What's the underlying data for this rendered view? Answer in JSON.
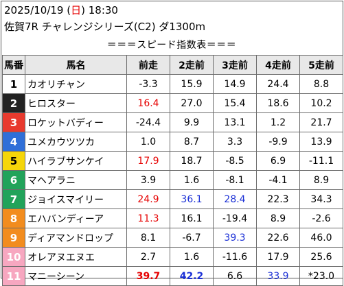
{
  "header": {
    "date": "2025/10/19",
    "weekday_open": " (",
    "weekday": "日",
    "weekday_close": ")",
    "time": " 18:30",
    "race": "佐賀7R チャレンジシリーズ(C2) ダ1300m"
  },
  "section_title": "＝＝＝スピード指数表＝＝＝",
  "columns": [
    "馬番",
    "馬名",
    "前走",
    "2走前",
    "3走前",
    "4走前",
    "5走前"
  ],
  "gate_colors": [
    "#ffffff",
    "#222222",
    "#e83a2e",
    "#2f6fd8",
    "#f5d60a",
    "#21a35a",
    "#f28c1e",
    "#f7a7c0"
  ],
  "rows": [
    {
      "no": "1",
      "name": "カオリチャン",
      "frame": 1,
      "v": [
        "-3.3",
        "15.9",
        "14.9",
        "24.4",
        "8.8"
      ],
      "c": [
        "",
        "",
        "",
        "",
        ""
      ]
    },
    {
      "no": "2",
      "name": "ヒロスター",
      "frame": 2,
      "v": [
        "16.4",
        "27.0",
        "15.4",
        "18.6",
        "10.2"
      ],
      "c": [
        "red",
        "",
        "",
        "",
        ""
      ]
    },
    {
      "no": "3",
      "name": "ロケットバディー",
      "frame": 3,
      "v": [
        "-24.4",
        "9.9",
        "13.1",
        "1.2",
        "21.7"
      ],
      "c": [
        "",
        "",
        "",
        "",
        ""
      ]
    },
    {
      "no": "4",
      "name": "ユメカウツツカ",
      "frame": 4,
      "v": [
        "1.0",
        "8.7",
        "3.3",
        "-9.9",
        "13.9"
      ],
      "c": [
        "",
        "",
        "",
        "",
        ""
      ]
    },
    {
      "no": "5",
      "name": "ハイラブサンケイ",
      "frame": 5,
      "v": [
        "17.9",
        "18.7",
        "-8.5",
        "6.9",
        "-11.1"
      ],
      "c": [
        "red",
        "",
        "",
        "",
        ""
      ]
    },
    {
      "no": "6",
      "name": "マヘアラニ",
      "frame": 6,
      "v": [
        "3.9",
        "1.6",
        "-8.1",
        "-4.1",
        "8.9"
      ],
      "c": [
        "",
        "",
        "",
        "",
        ""
      ]
    },
    {
      "no": "7",
      "name": "ジョイスマイリー",
      "frame": 6,
      "v": [
        "24.9",
        "36.1",
        "28.4",
        "22.3",
        "34.3"
      ],
      "c": [
        "red",
        "blue",
        "blue",
        "",
        ""
      ]
    },
    {
      "no": "8",
      "name": "エハバンディーア",
      "frame": 7,
      "v": [
        "11.3",
        "16.1",
        "-19.4",
        "8.9",
        "-2.6"
      ],
      "c": [
        "red",
        "",
        "",
        "",
        ""
      ]
    },
    {
      "no": "9",
      "name": "ディアマンドロップ",
      "frame": 7,
      "v": [
        "8.1",
        "-6.7",
        "39.3",
        "22.6",
        "46.0"
      ],
      "c": [
        "",
        "",
        "blue",
        "",
        ""
      ]
    },
    {
      "no": "10",
      "name": "オレアヌエヌエ",
      "frame": 8,
      "v": [
        "2.7",
        "1.6",
        "-11.6",
        "17.9",
        "25.6"
      ],
      "c": [
        "",
        "",
        "",
        "",
        ""
      ]
    },
    {
      "no": "11",
      "name": "マニーシーン",
      "frame": 8,
      "v": [
        "39.7",
        "42.2",
        "6.6",
        "33.9",
        "*23.0"
      ],
      "c": [
        "red b",
        "blue b",
        "",
        "blue",
        ""
      ]
    }
  ]
}
